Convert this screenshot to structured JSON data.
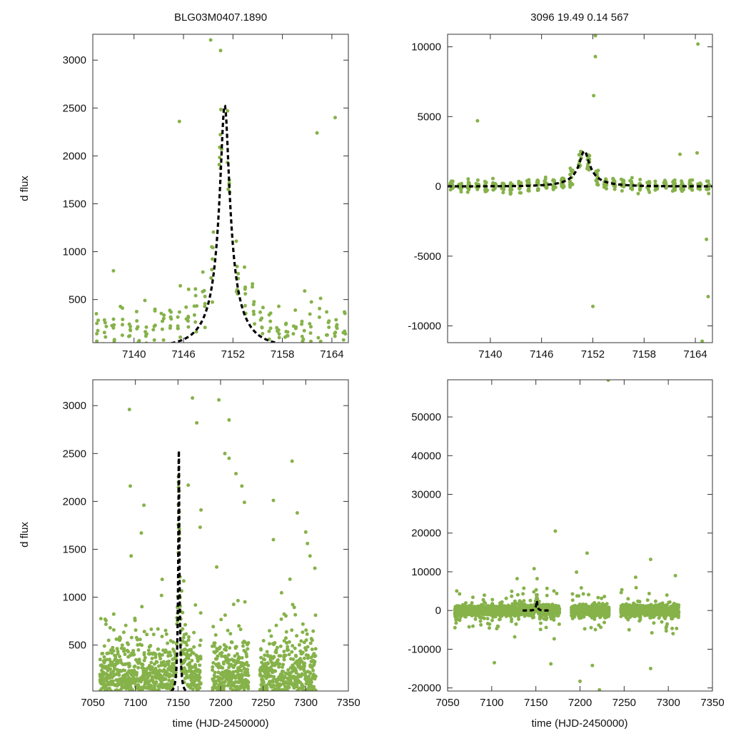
{
  "figure": {
    "title_left": "BLG03M0407.1890",
    "title_right": "3096  19.49  0.14  567",
    "ylabel": "d flux",
    "xlabel": "time (HJD-2450000)"
  },
  "colors": {
    "points": "#86b24a",
    "model": "#000000",
    "axis": "#333333",
    "background": "#ffffff"
  },
  "model": {
    "t0": 7151.0,
    "u0": 0.14,
    "tE": 4.0,
    "peak_flux": 2530
  },
  "chart_data": [
    {
      "id": "top-left",
      "type": "scatter",
      "title": "BLG03M0407.1890",
      "ylabel": "d flux",
      "xlim": [
        7135,
        7166
      ],
      "ylim": [
        50,
        3270
      ],
      "xticks": [
        7140,
        7146,
        7152,
        7158,
        7164
      ],
      "yticks": [
        500,
        1000,
        1500,
        2000,
        2500,
        3000
      ],
      "series": [
        {
          "name": "observations",
          "kind": "points"
        },
        {
          "name": "model",
          "kind": "dashed-line"
        }
      ],
      "outliers": [
        [
          7137.5,
          800
        ],
        [
          7145.5,
          2360
        ],
        [
          7149.3,
          3210
        ],
        [
          7150.5,
          3100
        ],
        [
          7162.2,
          2240
        ],
        [
          7164.4,
          2400
        ],
        [
          7160.7,
          590
        ]
      ]
    },
    {
      "id": "top-right",
      "type": "scatter",
      "title": "3096  19.49  0.14  567",
      "ylabel": "",
      "xlim": [
        7135,
        7166
      ],
      "ylim": [
        -11200,
        10900
      ],
      "xticks": [
        7140,
        7146,
        7152,
        7158,
        7164
      ],
      "yticks": [
        -10000,
        -5000,
        0,
        5000,
        10000
      ],
      "series": [
        {
          "name": "observations",
          "kind": "points"
        },
        {
          "name": "model",
          "kind": "dashed-line"
        }
      ],
      "outliers": [
        [
          7138.5,
          4700
        ],
        [
          7152.3,
          10800
        ],
        [
          7152.3,
          9300
        ],
        [
          7152.1,
          6500
        ],
        [
          7152.0,
          -8600
        ],
        [
          7164.3,
          10200
        ],
        [
          7165.5,
          -7900
        ],
        [
          7165.3,
          -3800
        ],
        [
          7164.8,
          -11100
        ],
        [
          7162.2,
          2300
        ],
        [
          7164.2,
          2400
        ]
      ]
    },
    {
      "id": "bottom-left",
      "type": "scatter",
      "title": "",
      "ylabel": "d flux",
      "xlabel": "time (HJD-2450000)",
      "xlim": [
        7050,
        7350
      ],
      "ylim": [
        20,
        3270
      ],
      "xticks": [
        7050,
        7100,
        7150,
        7200,
        7250,
        7300,
        7350
      ],
      "yticks": [
        500,
        1000,
        1500,
        2000,
        2500,
        3000
      ],
      "series": [
        {
          "name": "observations",
          "kind": "points"
        },
        {
          "name": "model",
          "kind": "dashed-line"
        }
      ],
      "outliers": [
        [
          7093,
          2960
        ],
        [
          7094,
          2160
        ],
        [
          7110,
          1960
        ],
        [
          7107,
          1670
        ],
        [
          7095,
          1430
        ],
        [
          7167,
          3080
        ],
        [
          7172,
          2820
        ],
        [
          7198,
          3060
        ],
        [
          7205,
          2500
        ],
        [
          7210,
          2450
        ],
        [
          7218,
          2290
        ],
        [
          7225,
          2160
        ],
        [
          7210,
          2850
        ],
        [
          7228,
          1990
        ],
        [
          7262,
          2010
        ],
        [
          7262,
          1600
        ],
        [
          7284,
          2420
        ],
        [
          7290,
          1880
        ],
        [
          7300,
          1680
        ],
        [
          7302,
          1560
        ],
        [
          7305,
          1430
        ],
        [
          7177,
          1910
        ],
        [
          7176,
          1730
        ],
        [
          7162,
          2170
        ]
      ]
    },
    {
      "id": "bottom-right",
      "type": "scatter",
      "title": "",
      "ylabel": "",
      "xlabel": "time (HJD-2450000)",
      "xlim": [
        7050,
        7350
      ],
      "ylim": [
        -20800,
        59600
      ],
      "xticks": [
        7050,
        7100,
        7150,
        7200,
        7250,
        7300,
        7350
      ],
      "yticks": [
        -20000,
        -10000,
        0,
        10000,
        20000,
        30000,
        40000,
        50000
      ],
      "series": [
        {
          "name": "observations",
          "kind": "points"
        },
        {
          "name": "model",
          "kind": "dashed-line"
        }
      ],
      "outliers": [
        [
          7232,
          59500
        ],
        [
          7172,
          20500
        ],
        [
          7208,
          14800
        ],
        [
          7280,
          13200
        ],
        [
          7103,
          -13500
        ],
        [
          7167,
          -13800
        ],
        [
          7214,
          -14200
        ],
        [
          7280,
          -15000
        ],
        [
          7222,
          -20500
        ],
        [
          7200,
          -18300
        ],
        [
          7196,
          9900
        ],
        [
          7148,
          10800
        ],
        [
          7308,
          9000
        ],
        [
          7263,
          8600
        ],
        [
          7298,
          -4100
        ],
        [
          7126,
          -6800
        ]
      ]
    }
  ]
}
